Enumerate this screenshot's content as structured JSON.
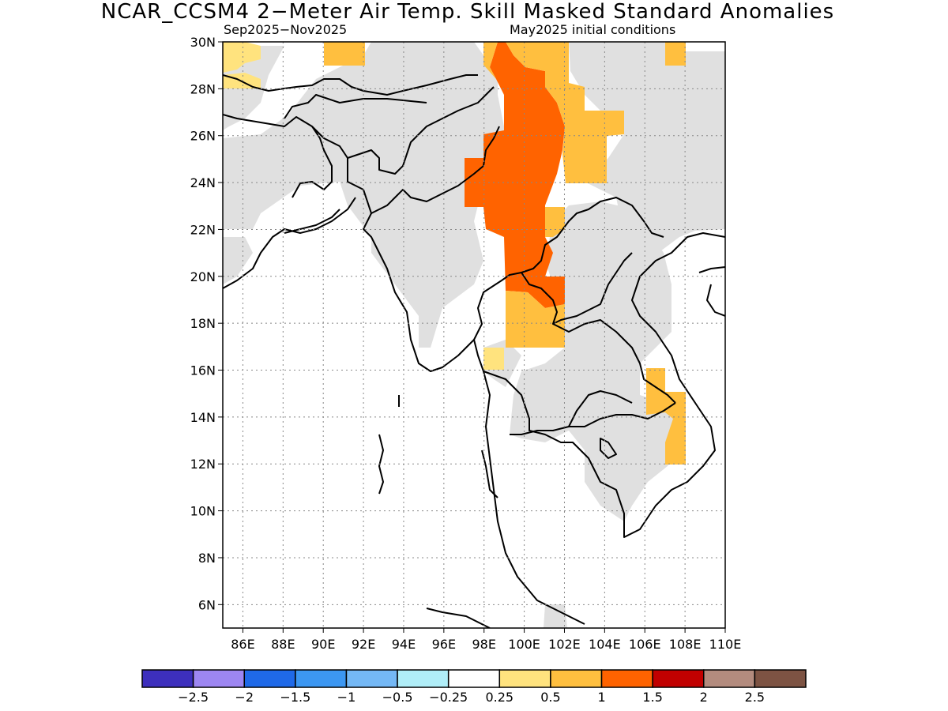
{
  "title": "NCAR_CCSM4 2−Meter Air Temp. Skill Masked Standard Anomalies",
  "period": "Sep2025−Nov2025",
  "init": "May2025 initial conditions",
  "map": {
    "lon_range": [
      85,
      110
    ],
    "lat_range": [
      5,
      30
    ],
    "lat_ticks": [
      "30N",
      "28N",
      "26N",
      "24N",
      "22N",
      "20N",
      "18N",
      "16N",
      "14N",
      "12N",
      "10N",
      "8N",
      "6N"
    ],
    "lon_ticks": [
      "86E",
      "88E",
      "90E",
      "92E",
      "94E",
      "96E",
      "98E",
      "100E",
      "102E",
      "104E",
      "106E",
      "108E",
      "110E"
    ],
    "colors": {
      "no_skill": "#e0e0e0",
      "a025_05": "#ffe37e",
      "a05_1": "#ffbf3f",
      "a1_15": "#ff6300"
    }
  },
  "colorbar": {
    "colors": [
      "#3d2fbd",
      "#9d86f2",
      "#1f69e8",
      "#3c97f2",
      "#74b8f5",
      "#b0eef8",
      "#ffffff",
      "#ffe37e",
      "#ffbf3f",
      "#ff6300",
      "#c10000",
      "#b38b7e",
      "#7d5343"
    ],
    "labels": [
      "−2.5",
      "−2",
      "−1.5",
      "−1",
      "−0.5",
      "−0.25",
      "0.25",
      "0.5",
      "1",
      "1.5",
      "2",
      "2.5"
    ]
  }
}
